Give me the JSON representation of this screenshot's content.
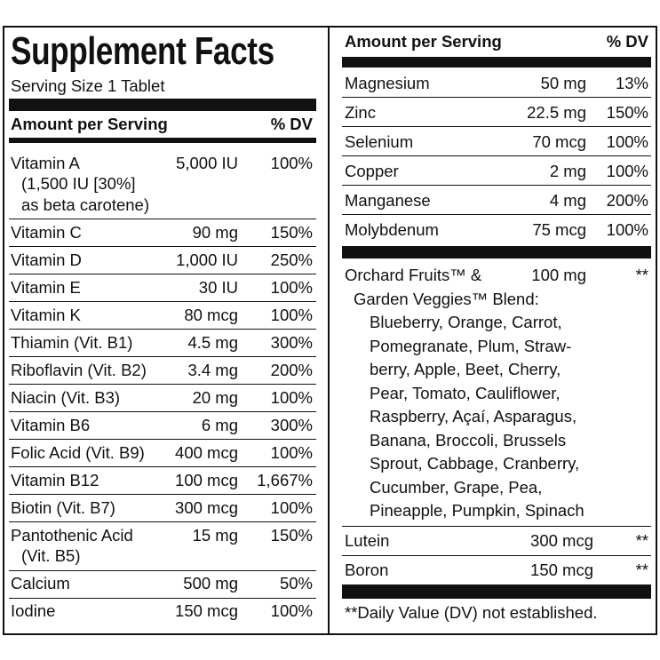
{
  "left": {
    "title": "Supplement Facts",
    "serving_size": "Serving Size 1 Tablet",
    "header": {
      "amount": "Amount per Serving",
      "dv": "% DV"
    },
    "rows": [
      {
        "name": [
          "Vitamin A",
          "(1,500 IU [30%]",
          "as beta carotene)"
        ],
        "amount": "5,000 IU",
        "dv": "100%"
      },
      {
        "name": [
          "Vitamin C"
        ],
        "amount": "90 mg",
        "dv": "150%"
      },
      {
        "name": [
          "Vitamin D"
        ],
        "amount": "1,000 IU",
        "dv": "250%"
      },
      {
        "name": [
          "Vitamin E"
        ],
        "amount": "30 IU",
        "dv": "100%"
      },
      {
        "name": [
          "Vitamin K"
        ],
        "amount": "80 mcg",
        "dv": "100%"
      },
      {
        "name": [
          "Thiamin (Vit. B1)"
        ],
        "amount": "4.5 mg",
        "dv": "300%"
      },
      {
        "name": [
          "Riboflavin (Vit. B2)"
        ],
        "amount": "3.4 mg",
        "dv": "200%"
      },
      {
        "name": [
          "Niacin (Vit. B3)"
        ],
        "amount": "20 mg",
        "dv": "100%"
      },
      {
        "name": [
          "Vitamin B6"
        ],
        "amount": "6 mg",
        "dv": "300%"
      },
      {
        "name": [
          "Folic Acid (Vit. B9)"
        ],
        "amount": "400 mcg",
        "dv": "100%"
      },
      {
        "name": [
          "Vitamin B12"
        ],
        "amount": "100 mcg",
        "dv": "1,667%"
      },
      {
        "name": [
          "Biotin (Vit. B7)"
        ],
        "amount": "300 mcg",
        "dv": "100%"
      },
      {
        "name": [
          "Pantothenic Acid",
          "(Vit. B5)"
        ],
        "amount": "15 mg",
        "dv": "150%"
      },
      {
        "name": [
          "Calcium"
        ],
        "amount": "500 mg",
        "dv": "50%"
      },
      {
        "name": [
          "Iodine"
        ],
        "amount": "150 mcg",
        "dv": "100%"
      }
    ]
  },
  "right": {
    "header": {
      "amount": "Amount per Serving",
      "dv": "% DV"
    },
    "rows": [
      {
        "name": "Magnesium",
        "amount": "50 mg",
        "dv": "13%"
      },
      {
        "name": "Zinc",
        "amount": "22.5 mg",
        "dv": "150%"
      },
      {
        "name": "Selenium",
        "amount": "70 mcg",
        "dv": "100%"
      },
      {
        "name": "Copper",
        "amount": "2 mg",
        "dv": "100%"
      },
      {
        "name": "Manganese",
        "amount": "4 mg",
        "dv": "200%"
      },
      {
        "name": "Molybdenum",
        "amount": "75 mcg",
        "dv": "100%"
      }
    ],
    "blend": {
      "name": [
        "Orchard Fruits™ &",
        "Garden Veggies™ Blend:"
      ],
      "amount": "100 mg",
      "dv": "**",
      "ingredients": [
        "Blueberry, Orange, Carrot,",
        "Pomegranate, Plum, Straw-",
        "berry, Apple, Beet, Cherry,",
        "Pear, Tomato, Cauliflower,",
        "Raspberry, Açaí, Asparagus,",
        "Banana, Broccoli, Brussels",
        "Sprout, Cabbage, Cranberry,",
        "Cucumber, Grape, Pea,",
        "Pineapple, Pumpkin, Spinach"
      ]
    },
    "other_rows": [
      {
        "name": "Lutein",
        "amount": "300 mcg",
        "dv": "**"
      },
      {
        "name": "Boron",
        "amount": "150 mcg",
        "dv": "**"
      }
    ],
    "footnote": "**Daily Value (DV) not established."
  }
}
